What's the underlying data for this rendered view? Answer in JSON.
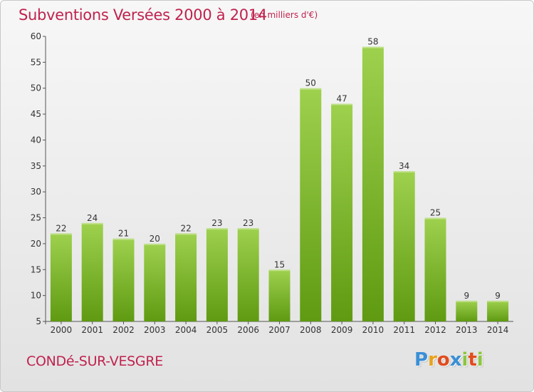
{
  "header": {
    "title": "Subventions Versées 2000 à 2014",
    "subtitle": "(en milliers d'€)"
  },
  "footer": {
    "commune": "CONDé-SUR-VESGRE",
    "logo_letters": [
      "P",
      "r",
      "o",
      "x",
      "i",
      "t",
      "i"
    ]
  },
  "colors": {
    "title": "#c0224e",
    "bar_top": "#9ed14e",
    "bar_bottom": "#5f9a12",
    "logo": [
      "#3a8fd6",
      "#e8a21b",
      "#e04c1e",
      "#3a8fd6",
      "#8cc63e",
      "#e04c1e",
      "#8cc63e"
    ]
  },
  "chart_data": {
    "type": "bar",
    "title": "Subventions Versées 2000 à 2014",
    "subtitle": "(en milliers d'€)",
    "categories": [
      "2000",
      "2001",
      "2002",
      "2003",
      "2004",
      "2005",
      "2006",
      "2007",
      "2008",
      "2009",
      "2010",
      "2011",
      "2012",
      "2013",
      "2014"
    ],
    "values": [
      22,
      24,
      21,
      20,
      22,
      23,
      23,
      15,
      50,
      47,
      58,
      34,
      25,
      9,
      9
    ],
    "ylim": [
      5,
      60
    ],
    "yticks": [
      5,
      10,
      15,
      20,
      25,
      30,
      35,
      40,
      45,
      50,
      55,
      60
    ],
    "xlabel": "",
    "ylabel": "",
    "grid": false
  }
}
